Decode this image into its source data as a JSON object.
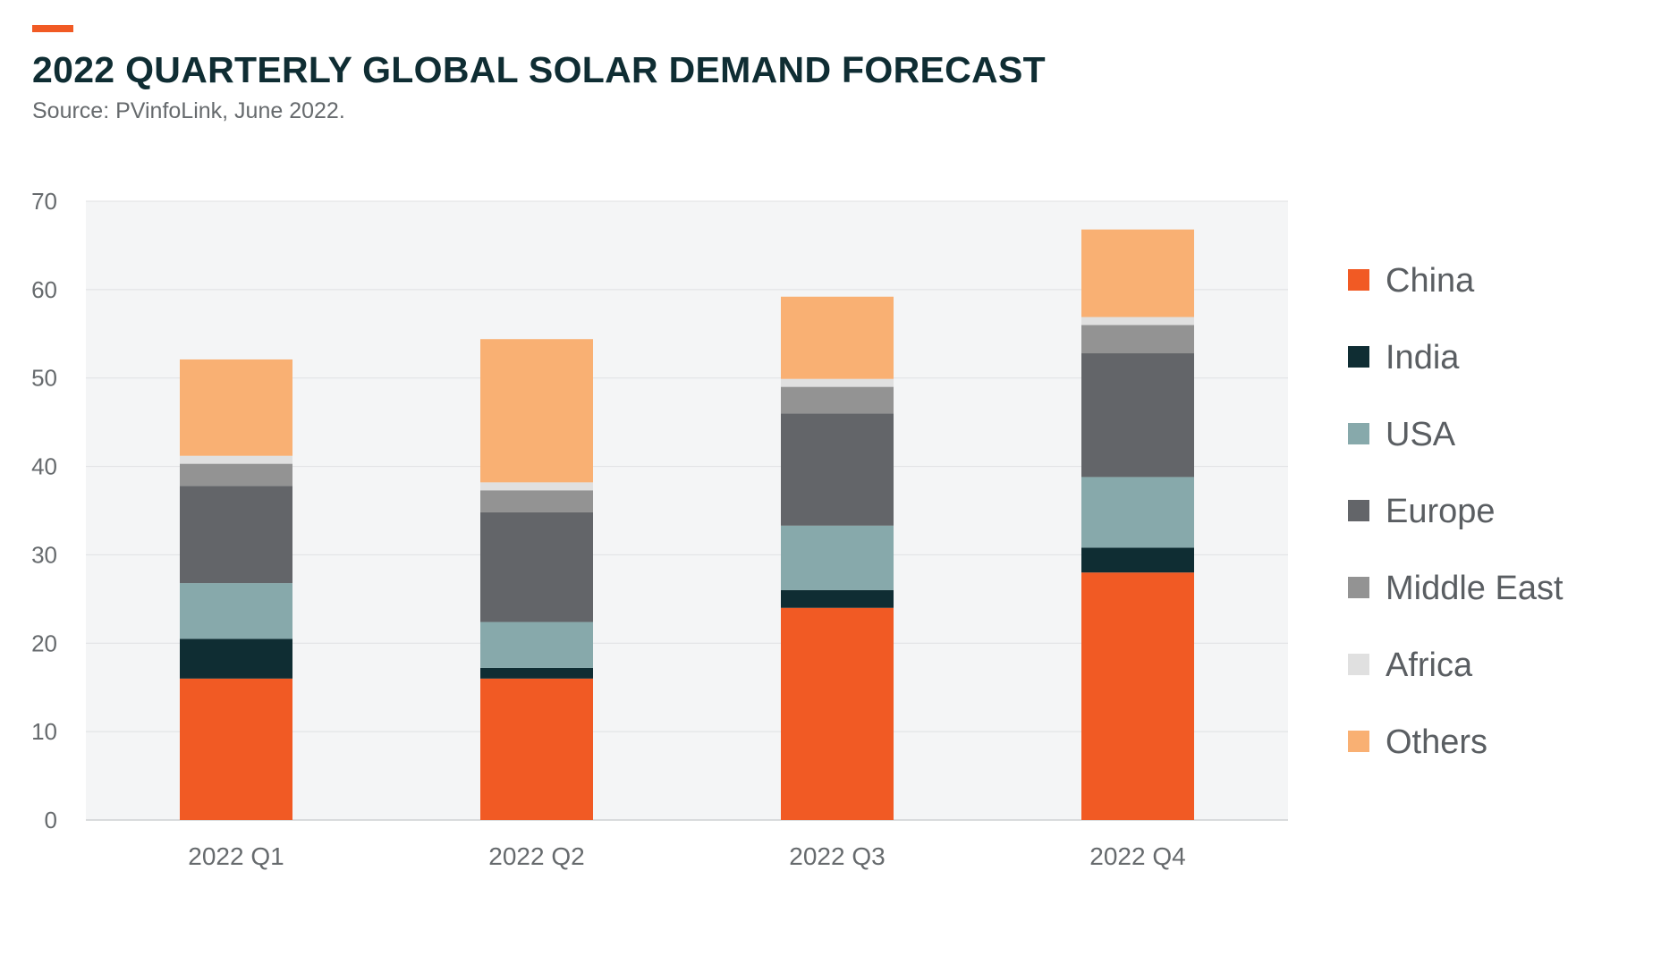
{
  "header": {
    "title": "2022 QUARTERLY GLOBAL SOLAR DEMAND FORECAST",
    "subtitle": "Source: PVinfoLink, June 2022.",
    "accent_color": "#f15a24",
    "title_color": "#0f2d33"
  },
  "chart_data": {
    "type": "bar",
    "stacked": true,
    "categories": [
      "2022 Q1",
      "2022 Q2",
      "2022 Q3",
      "2022 Q4"
    ],
    "series": [
      {
        "name": "China",
        "color": "#f15a24",
        "values": [
          16,
          16,
          24,
          28
        ]
      },
      {
        "name": "India",
        "color": "#0f2d33",
        "values": [
          4.5,
          1.2,
          2,
          2.8
        ]
      },
      {
        "name": "USA",
        "color": "#87a9ab",
        "values": [
          6.3,
          5.2,
          7.3,
          8
        ]
      },
      {
        "name": "Europe",
        "color": "#636569",
        "values": [
          11,
          12.4,
          12.7,
          14
        ]
      },
      {
        "name": "Middle East",
        "color": "#939393",
        "values": [
          2.5,
          2.5,
          3,
          3.2
        ]
      },
      {
        "name": "Africa",
        "color": "#e0e0e0",
        "values": [
          0.9,
          0.9,
          0.9,
          0.9
        ]
      },
      {
        "name": "Others",
        "color": "#f9b073",
        "values": [
          10.9,
          16.2,
          9.3,
          9.9
        ]
      }
    ],
    "ylim": [
      0,
      70
    ],
    "yticks": [
      0,
      10,
      20,
      30,
      40,
      50,
      60,
      70
    ],
    "ytick_labels": [
      "0",
      "10",
      "20",
      "30",
      "40",
      "50",
      "60",
      "70"
    ],
    "grid": true,
    "legend_position": "right",
    "plot_background": "#f4f5f6"
  }
}
